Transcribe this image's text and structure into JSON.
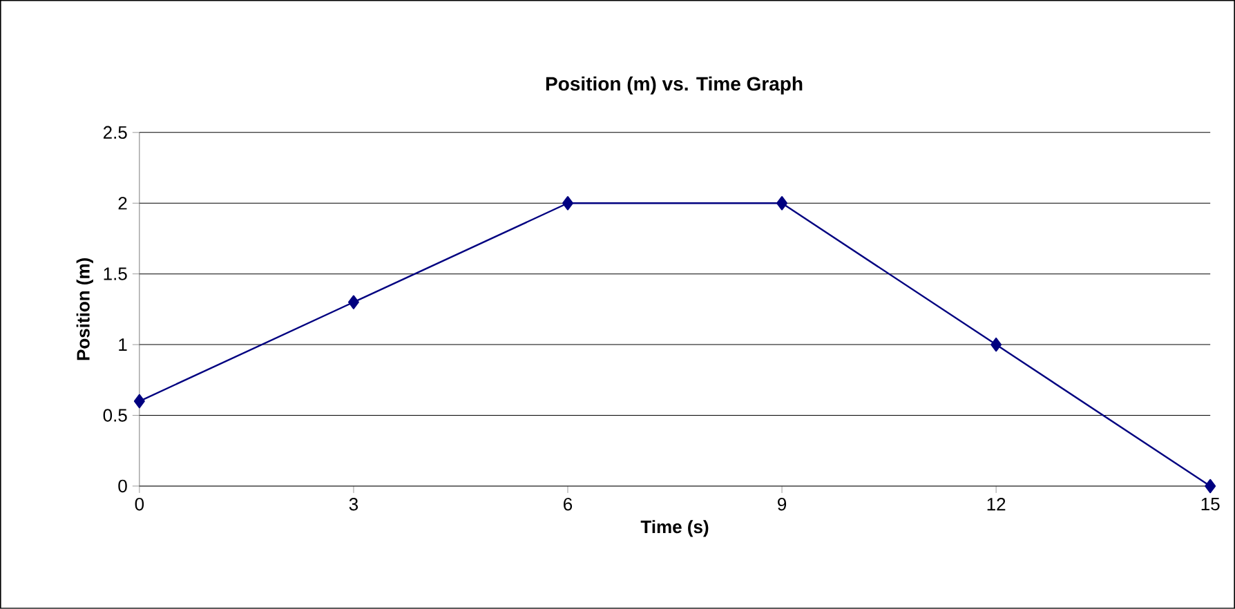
{
  "chart_data": {
    "type": "line",
    "title": "Position (m) vs. Time Graph",
    "xlabel": "Time (s)",
    "ylabel": "Position (m)",
    "x": [
      0,
      3,
      6,
      9,
      12,
      15
    ],
    "series": [
      {
        "color": "#000080",
        "values": [
          0.6,
          1.3,
          2,
          2,
          1,
          0
        ]
      }
    ],
    "xlim": [
      0,
      15
    ],
    "xticks": [
      0,
      3,
      6,
      9,
      12,
      15
    ],
    "ylim": [
      0,
      2.5
    ],
    "yticks": [
      0,
      0.5,
      1,
      1.5,
      2,
      2.5
    ],
    "grid": "y",
    "marker": "diamond",
    "line_style": "solid"
  }
}
